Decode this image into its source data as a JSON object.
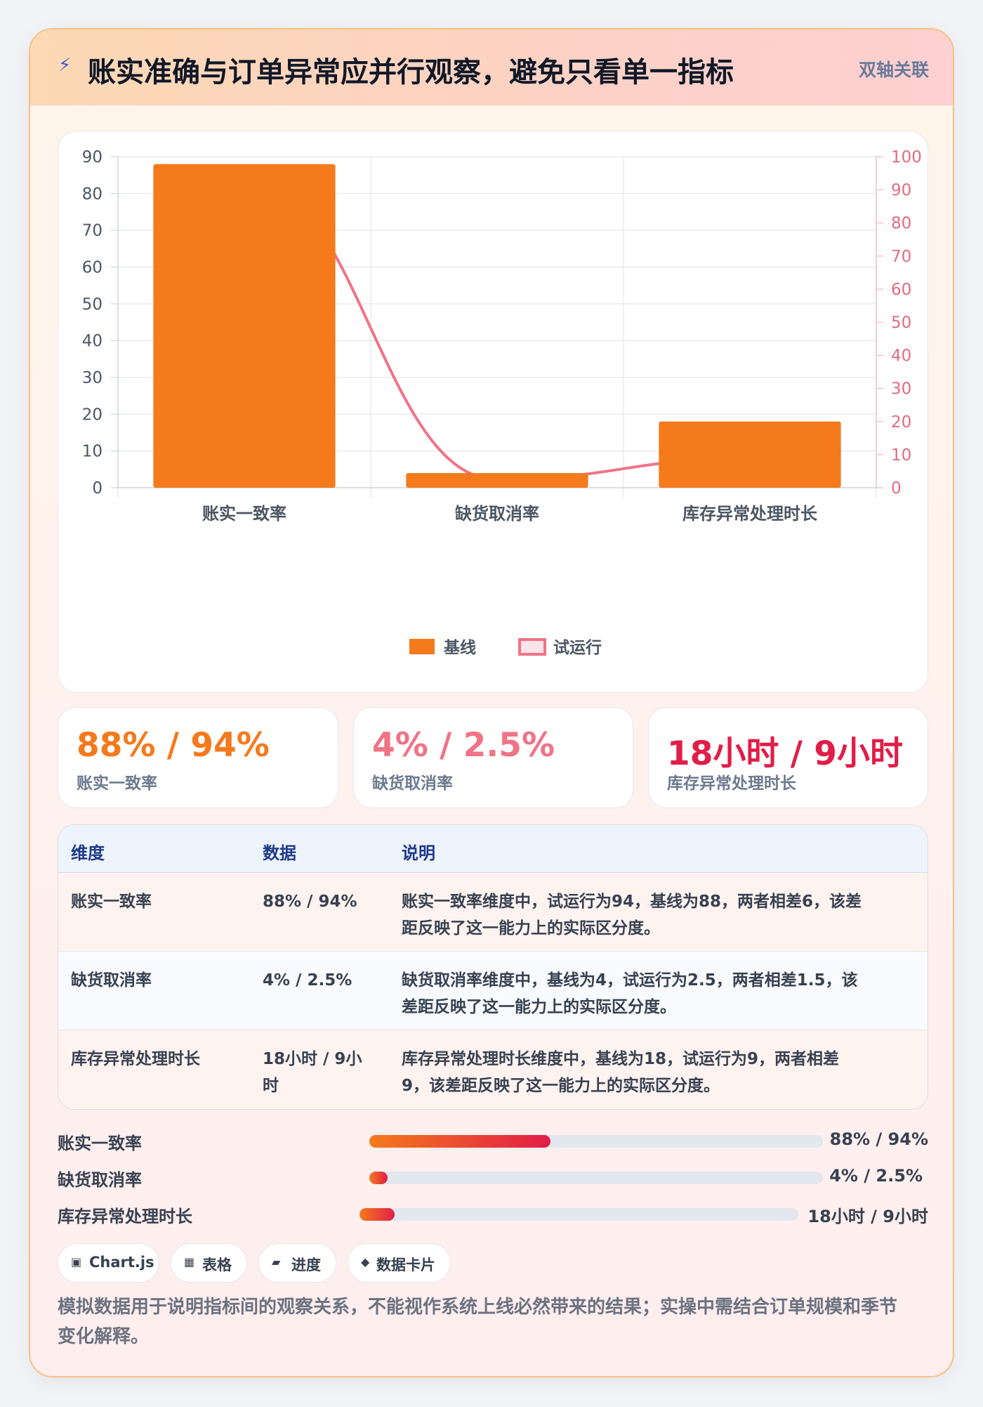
{
  "header": {
    "title": "账实准确与订单异常应并行观察，避免只看单一指标",
    "badge": "双轴关联"
  },
  "chart_data": {
    "type": "bar",
    "categories": [
      "账实一致率",
      "缺货取消率",
      "库存异常处理时长"
    ],
    "series": [
      {
        "name": "基线",
        "type": "bar",
        "axis": "left",
        "color": "#f47a1c",
        "values": [
          88,
          4,
          18
        ]
      },
      {
        "name": "试运行",
        "type": "line",
        "axis": "right",
        "color": "#f07386",
        "values": [
          94,
          2.5,
          9
        ]
      }
    ],
    "y_left": {
      "min": 0,
      "max": 90,
      "step": 10,
      "ticks": [
        "0",
        "10",
        "20",
        "30",
        "40",
        "50",
        "60",
        "70",
        "80",
        "90"
      ]
    },
    "y_right": {
      "min": 0,
      "max": 100,
      "step": 10,
      "ticks": [
        "0",
        "10",
        "20",
        "30",
        "40",
        "50",
        "60",
        "70",
        "80",
        "90",
        "100"
      ]
    },
    "legend_position": "bottom",
    "grid": true
  },
  "legend": {
    "baseline": "基线",
    "trial": "试运行"
  },
  "stats": [
    {
      "value": "88% / 94%",
      "label": "账实一致率",
      "color": "#f47a1c"
    },
    {
      "value": "4% / 2.5%",
      "label": "缺货取消率",
      "color": "#f07386"
    },
    {
      "value": "18小时 / 9小时",
      "label": "库存异常处理时长",
      "color": "#e11d48"
    }
  ],
  "table": {
    "headers": [
      "维度",
      "数据",
      "说明"
    ],
    "rows": [
      {
        "dim": "账实一致率",
        "data": "88% / 94%",
        "desc1": "账实一致率维度中，试运行为94，基线为88，两者相差6，该差",
        "desc2": "距反映了这一能力上的实际区分度。"
      },
      {
        "dim": "缺货取消率",
        "data": "4% / 2.5%",
        "desc1": "缺货取消率维度中，基线为4，试运行为2.5，两者相差1.5，该",
        "desc2": "差距反映了这一能力上的实际区分度。"
      },
      {
        "dim": "库存异常处理时长",
        "data1": "18小时 / 9小",
        "data2": "时",
        "desc1": "库存异常处理时长维度中，基线为18，试运行为9，两者相差",
        "desc2": "9，该差距反映了这一能力上的实际区分度。"
      }
    ]
  },
  "progress": [
    {
      "label": "账实一致率",
      "value": "88% / 94%",
      "fill_fraction": 0.4
    },
    {
      "label": "缺货取消率",
      "value": "4% / 2.5%",
      "fill_fraction": 0.04
    },
    {
      "label": "库存异常处理时长",
      "value": "18小时 / 9小时",
      "fill_fraction": 0.08
    }
  ],
  "chips": [
    {
      "icon": "▣",
      "icon_name": "chart-icon",
      "label": "Chart.js"
    },
    {
      "icon": "▦",
      "icon_name": "table-icon",
      "label": "表格"
    },
    {
      "icon": "▰",
      "icon_name": "progress-icon",
      "label": "进度"
    },
    {
      "icon": "◆",
      "icon_name": "card-icon",
      "label": "数据卡片"
    }
  ],
  "note": {
    "line1": "模拟数据用于说明指标间的观察关系，不能视作系统上线必然带来的结果；实操中需结合订单规模和季节",
    "line2": "变化解释。"
  }
}
